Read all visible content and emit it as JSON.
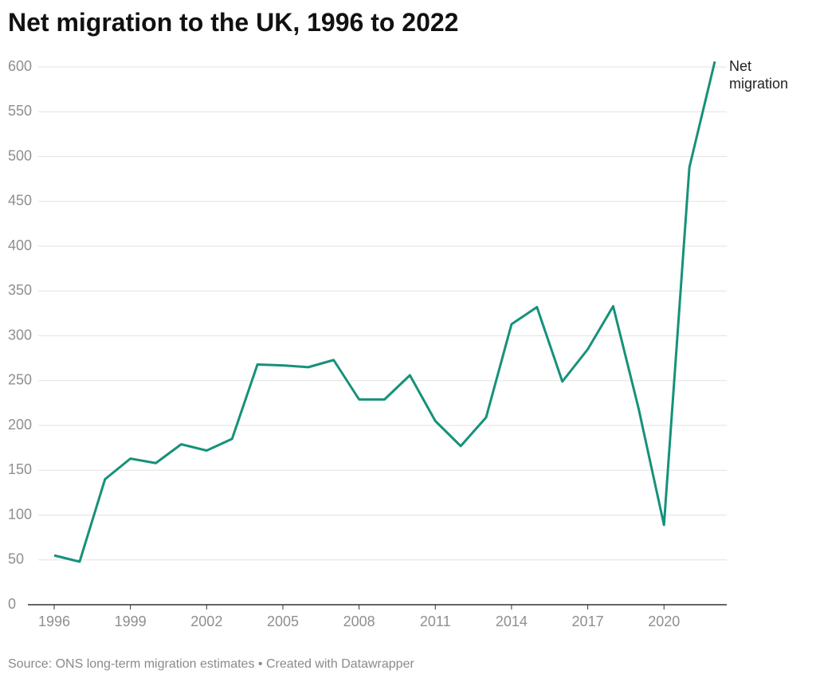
{
  "chart_data": {
    "type": "line",
    "title": "Net migration to the UK, 1996 to 2022",
    "source": "Source: ONS long-term migration estimates • Created with Datawrapper",
    "x": [
      1996,
      1997,
      1998,
      1999,
      2000,
      2001,
      2002,
      2003,
      2004,
      2005,
      2006,
      2007,
      2008,
      2009,
      2010,
      2011,
      2012,
      2013,
      2014,
      2015,
      2016,
      2017,
      2018,
      2019,
      2020,
      2021,
      2022
    ],
    "series": [
      {
        "name": "Net migration",
        "color": "#16917a",
        "values": [
          55,
          48,
          140,
          163,
          158,
          179,
          172,
          185,
          268,
          267,
          265,
          273,
          229,
          229,
          256,
          205,
          177,
          209,
          313,
          332,
          249,
          285,
          333,
          219,
          89,
          488,
          606
        ]
      }
    ],
    "xlim": [
      1996,
      2022
    ],
    "xticks": [
      1996,
      1999,
      2002,
      2005,
      2008,
      2011,
      2014,
      2017,
      2020
    ],
    "ylim": [
      0,
      600
    ],
    "yticks": [
      0,
      50,
      100,
      150,
      200,
      250,
      300,
      350,
      400,
      450,
      500,
      550,
      600
    ],
    "grid": true
  }
}
